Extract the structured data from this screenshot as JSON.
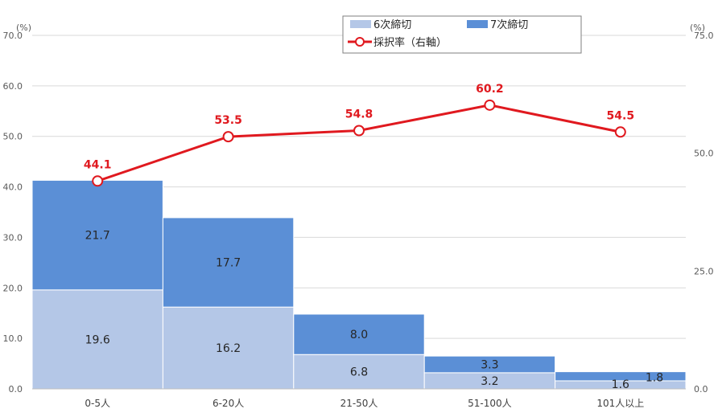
{
  "chart_data": {
    "type": "bar",
    "categories": [
      "0-5人",
      "6-20人",
      "21-50人",
      "51-100人",
      "101人以上"
    ],
    "series": [
      {
        "name": "6次締切",
        "values": [
          19.6,
          16.2,
          6.8,
          3.2,
          1.6
        ],
        "color": "#b4c7e7",
        "axis": "left"
      },
      {
        "name": "7次締切",
        "values": [
          21.7,
          17.7,
          8.0,
          3.3,
          1.8
        ],
        "color": "#5b8fd6",
        "axis": "left"
      },
      {
        "name": "採択率（右軸）",
        "type": "line",
        "values": [
          44.1,
          53.5,
          54.8,
          60.2,
          54.5
        ],
        "color": "#e0191f",
        "axis": "right"
      }
    ],
    "bar_labels": [
      [
        "19.6",
        "16.2",
        "6.8",
        "3.2",
        "1.6"
      ],
      [
        "21.7",
        "17.7",
        "8.0",
        "3.3",
        "1.8"
      ]
    ],
    "line_labels": [
      "44.1",
      "53.5",
      "54.8",
      "60.2",
      "54.5"
    ],
    "y_left": {
      "unit": "(%)",
      "ylim": [
        0,
        70
      ],
      "ticks": [
        "0.0",
        "10.0",
        "20.0",
        "30.0",
        "40.0",
        "50.0",
        "60.0",
        "70.0"
      ]
    },
    "y_right": {
      "unit": "(%)",
      "ylim": [
        0,
        75
      ],
      "ticks": [
        "0.0",
        "25.0",
        "50.0",
        "75.0"
      ]
    },
    "grid": true,
    "legend_position": "top-right"
  }
}
